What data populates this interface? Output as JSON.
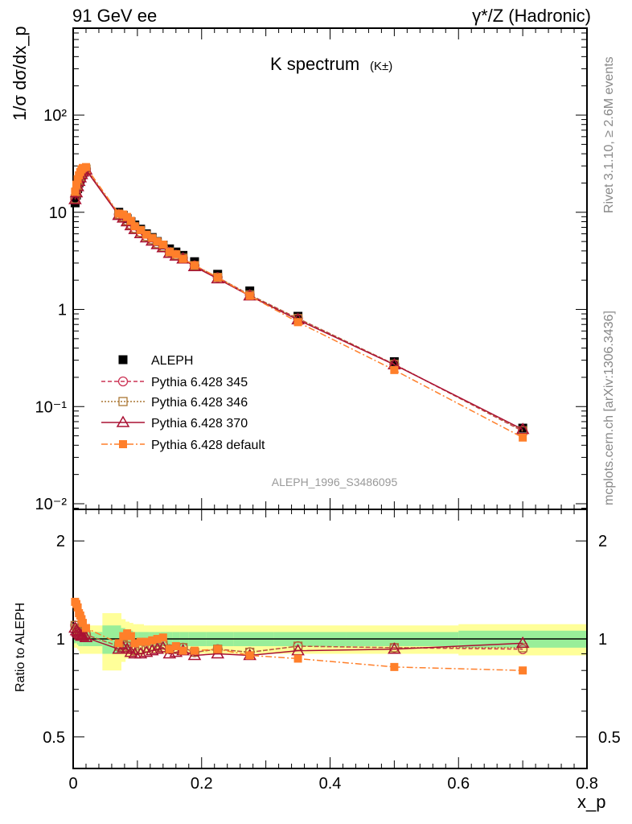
{
  "header": {
    "left": "91 GeV ee",
    "right": "γ*/Z (Hadronic)"
  },
  "side": {
    "rivet": "Rivet 3.1.10, ≥ 2.6M events",
    "mcplots": "mcplots.cern.ch [arXiv:1306.3436]"
  },
  "chart_data": {
    "type": "line",
    "title": "K spectrum",
    "subtitle": "(K±)",
    "analysis": "ALEPH_1996_S3486095",
    "ylabel": "1/σ dσ/dx_p",
    "xlabel": "x_p",
    "ratio_ylabel": "Ratio to ALEPH",
    "xlim": [
      0,
      0.8
    ],
    "ylim": [
      0.00875,
      785
    ],
    "ratio_ylim": [
      0.4,
      2.5
    ],
    "xticks": [
      "0",
      "0.2",
      "0.4",
      "0.6",
      "0.8"
    ],
    "yticks": [
      "10⁻²",
      "10⁻¹",
      "1",
      "10",
      "10²"
    ],
    "ratio_yticks": [
      "0.5",
      "1",
      "2"
    ],
    "x": [
      0.003,
      0.005,
      0.007,
      0.009,
      0.011,
      0.013,
      0.015,
      0.02,
      0.071,
      0.078,
      0.084,
      0.09,
      0.096,
      0.105,
      0.114,
      0.123,
      0.131,
      0.14,
      0.15,
      0.16,
      0.171,
      0.189,
      0.225,
      0.275,
      0.35,
      0.5,
      0.7
    ],
    "data": {
      "name": "ALEPH",
      "values": [
        12.5,
        15,
        17.5,
        20,
        22,
        24,
        25.5,
        27,
        10,
        9.3,
        8.6,
        8.0,
        7.4,
        6.7,
        6.0,
        5.5,
        5.0,
        4.6,
        4.2,
        3.9,
        3.6,
        3.1,
        2.3,
        1.55,
        0.85,
        0.29,
        0.06
      ]
    },
    "band_total": [
      0.06,
      0.06,
      0.07,
      0.08,
      0.1,
      0.1,
      0.1,
      0.1,
      0.2,
      0.15,
      0.13,
      0.12,
      0.11,
      0.11,
      0.1,
      0.1,
      0.1,
      0.1,
      0.1,
      0.1,
      0.1,
      0.1,
      0.1,
      0.1,
      0.1,
      0.1,
      0.11
    ],
    "band_stat": [
      0.03,
      0.03,
      0.04,
      0.05,
      0.05,
      0.05,
      0.05,
      0.05,
      0.1,
      0.08,
      0.07,
      0.06,
      0.05,
      0.05,
      0.05,
      0.05,
      0.05,
      0.05,
      0.05,
      0.05,
      0.05,
      0.05,
      0.05,
      0.05,
      0.05,
      0.05,
      0.06
    ],
    "series": [
      {
        "name": "Pythia 6.428 345",
        "color": "#cc3355",
        "marker": "circle",
        "dash": "5,3",
        "ratio": [
          1.1,
          1.08,
          1.07,
          1.06,
          1.05,
          1.04,
          1.04,
          1.03,
          0.95,
          0.96,
          0.95,
          0.93,
          0.92,
          0.93,
          0.94,
          0.95,
          0.95,
          0.96,
          0.93,
          0.93,
          0.94,
          0.91,
          0.93,
          0.91,
          0.95,
          0.94,
          0.93
        ]
      },
      {
        "name": "Pythia 6.428 346",
        "color": "#aa7733",
        "marker": "square-open",
        "dash": "2,2",
        "ratio": [
          1.1,
          1.08,
          1.07,
          1.06,
          1.05,
          1.04,
          1.04,
          1.03,
          0.95,
          0.96,
          0.95,
          0.93,
          0.92,
          0.93,
          0.94,
          0.95,
          0.95,
          0.96,
          0.93,
          0.93,
          0.94,
          0.91,
          0.93,
          0.91,
          0.95,
          0.94,
          0.94
        ]
      },
      {
        "name": "Pythia 6.428 370",
        "color": "#aa1133",
        "marker": "triangle",
        "dash": "",
        "ratio": [
          1.08,
          1.06,
          1.05,
          1.04,
          1.03,
          1.02,
          1.02,
          1.01,
          0.93,
          0.94,
          0.93,
          0.91,
          0.9,
          0.9,
          0.91,
          0.92,
          0.93,
          0.94,
          0.9,
          0.91,
          0.92,
          0.89,
          0.9,
          0.89,
          0.92,
          0.93,
          0.97
        ]
      },
      {
        "name": "Pythia 6.428 default",
        "color": "#ff7f2a",
        "marker": "square-filled",
        "dash": "8,3,2,3",
        "ratio": [
          1.3,
          1.28,
          1.25,
          1.2,
          1.18,
          1.15,
          1.12,
          1.08,
          0.97,
          1.02,
          1.04,
          1.02,
          0.97,
          0.98,
          0.98,
          0.99,
          1.0,
          1.01,
          0.93,
          0.95,
          0.92,
          0.92,
          0.93,
          0.89,
          0.87,
          0.82,
          0.8
        ]
      }
    ]
  }
}
